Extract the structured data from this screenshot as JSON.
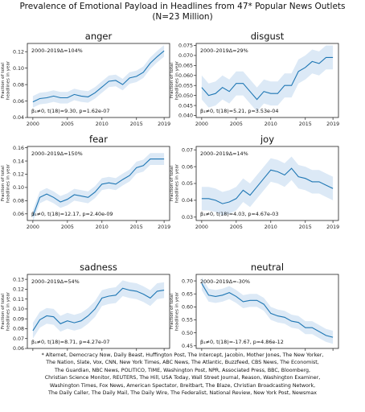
{
  "title_lines": [
    "Prevalence of Emotional Payload in Headlines from 47* Popular News Outlets",
    "(N=23 Million)"
  ],
  "colors": {
    "line": "#1f77b4",
    "band": "#dce9f6"
  },
  "chart_data": [
    {
      "type": "line",
      "title": "anger",
      "ylabel_lines": [
        "Fraction of total",
        "headlines in year"
      ],
      "x": [
        2000,
        2001,
        2002,
        2003,
        2004,
        2005,
        2006,
        2007,
        2008,
        2009,
        2010,
        2011,
        2012,
        2013,
        2014,
        2015,
        2016,
        2017,
        2018,
        2019
      ],
      "y": [
        0.059,
        0.063,
        0.064,
        0.066,
        0.064,
        0.064,
        0.068,
        0.066,
        0.065,
        0.07,
        0.077,
        0.084,
        0.085,
        0.08,
        0.088,
        0.09,
        0.095,
        0.106,
        0.114,
        0.121
      ],
      "band_width": 0.007,
      "xlim": [
        1999.2,
        2019.8
      ],
      "ylim": [
        0.04,
        0.13
      ],
      "xticks": [
        2000,
        2005,
        2010,
        2015,
        2019
      ],
      "yticks": [
        0.04,
        0.06,
        0.08,
        0.1,
        0.12
      ],
      "ytick_labels": [
        "0.04",
        "0.06",
        "0.08",
        "0.10",
        "0.12"
      ],
      "annotation_top": "2000–2019Δ=104%",
      "annotation_bottom": "β₁≠0, t(18)=9.30, p=1.62e-07"
    },
    {
      "type": "line",
      "title": "disgust",
      "ylabel_lines": [
        "Fraction of total",
        "headlines in year"
      ],
      "x": [
        2000,
        2001,
        2002,
        2003,
        2004,
        2005,
        2006,
        2007,
        2008,
        2009,
        2010,
        2011,
        2012,
        2013,
        2014,
        2015,
        2016,
        2017,
        2018,
        2019
      ],
      "y": [
        0.054,
        0.05,
        0.051,
        0.054,
        0.052,
        0.056,
        0.056,
        0.052,
        0.048,
        0.052,
        0.051,
        0.051,
        0.055,
        0.055,
        0.062,
        0.064,
        0.067,
        0.066,
        0.069,
        0.069
      ],
      "band_width": 0.006,
      "xlim": [
        1999.2,
        2019.8
      ],
      "ylim": [
        0.039,
        0.076
      ],
      "xticks": [
        2000,
        2005,
        2010,
        2015,
        2019
      ],
      "yticks": [
        0.04,
        0.045,
        0.05,
        0.055,
        0.06,
        0.065,
        0.07,
        0.075
      ],
      "ytick_labels": [
        "0.040",
        "0.045",
        "0.050",
        "0.055",
        "0.060",
        "0.065",
        "0.070",
        "0.075"
      ],
      "annotation_top": "2000–2019Δ=29%",
      "annotation_bottom": "β₁≠0, t(18)=5.21, p=3.53e-04"
    },
    {
      "type": "line",
      "title": "fear",
      "ylabel_lines": [
        "Fraction of total",
        "headlines in year"
      ],
      "x": [
        2000,
        2001,
        2002,
        2003,
        2004,
        2005,
        2006,
        2007,
        2008,
        2009,
        2010,
        2011,
        2012,
        2013,
        2014,
        2015,
        2016,
        2017,
        2018,
        2019
      ],
      "y": [
        0.057,
        0.085,
        0.09,
        0.085,
        0.078,
        0.082,
        0.089,
        0.087,
        0.085,
        0.093,
        0.105,
        0.107,
        0.105,
        0.112,
        0.118,
        0.13,
        0.133,
        0.143,
        0.143,
        0.143
      ],
      "band_width": 0.009,
      "xlim": [
        1999.2,
        2019.8
      ],
      "ylim": [
        0.05,
        0.162
      ],
      "xticks": [
        2000,
        2005,
        2010,
        2015,
        2019
      ],
      "yticks": [
        0.06,
        0.08,
        0.1,
        0.12,
        0.14,
        0.16
      ],
      "ytick_labels": [
        "0.06",
        "0.08",
        "0.10",
        "0.12",
        "0.14",
        "0.16"
      ],
      "annotation_top": "2000–2019Δ=150%",
      "annotation_bottom": "β₁≠0, t(18)=12.17, p=2.40e-09"
    },
    {
      "type": "line",
      "title": "joy",
      "ylabel_lines": [
        "Fraction of total",
        "headlines in year"
      ],
      "x": [
        2000,
        2001,
        2002,
        2003,
        2004,
        2005,
        2006,
        2007,
        2008,
        2009,
        2010,
        2011,
        2012,
        2013,
        2014,
        2015,
        2016,
        2017,
        2018,
        2019
      ],
      "y": [
        0.041,
        0.041,
        0.04,
        0.038,
        0.039,
        0.041,
        0.046,
        0.043,
        0.048,
        0.053,
        0.058,
        0.057,
        0.055,
        0.059,
        0.054,
        0.053,
        0.051,
        0.051,
        0.049,
        0.047
      ],
      "band_width": 0.007,
      "xlim": [
        1999.2,
        2019.8
      ],
      "ylim": [
        0.028,
        0.072
      ],
      "xticks": [
        2000,
        2005,
        2010,
        2015,
        2019
      ],
      "yticks": [
        0.03,
        0.04,
        0.05,
        0.06,
        0.07
      ],
      "ytick_labels": [
        "0.03",
        "0.04",
        "0.05",
        "0.06",
        "0.07"
      ],
      "annotation_top": "2000–2019Δ=14%",
      "annotation_bottom": "β₁≠0, t(18)=4.03, p=4.67e-03"
    },
    {
      "type": "line",
      "title": "sadness",
      "ylabel_lines": [
        "Fraction of total",
        "headlines in year"
      ],
      "x": [
        2000,
        2001,
        2002,
        2003,
        2004,
        2005,
        2006,
        2007,
        2008,
        2009,
        2010,
        2011,
        2012,
        2013,
        2014,
        2015,
        2016,
        2017,
        2018,
        2019
      ],
      "y": [
        0.078,
        0.089,
        0.093,
        0.092,
        0.085,
        0.088,
        0.086,
        0.088,
        0.093,
        0.1,
        0.111,
        0.113,
        0.114,
        0.121,
        0.119,
        0.118,
        0.115,
        0.111,
        0.118,
        0.119
      ],
      "band_width": 0.008,
      "xlim": [
        1999.2,
        2019.8
      ],
      "ylim": [
        0.06,
        0.135
      ],
      "xticks": [
        2000,
        2005,
        2010,
        2015,
        2019
      ],
      "yticks": [
        0.06,
        0.07,
        0.08,
        0.09,
        0.1,
        0.11,
        0.12,
        0.13
      ],
      "ytick_labels": [
        "0.06",
        "0.07",
        "0.08",
        "0.09",
        "0.10",
        "0.11",
        "0.12",
        "0.13"
      ],
      "annotation_top": "2000–2019Δ=54%",
      "annotation_bottom": "β₁≠0, t(18)=8.71, p=4.27e-07"
    },
    {
      "type": "line",
      "title": "neutral",
      "ylabel_lines": [
        "Fraction of total",
        "headlines in year"
      ],
      "x": [
        2000,
        2001,
        2002,
        2003,
        2004,
        2005,
        2006,
        2007,
        2008,
        2009,
        2010,
        2011,
        2012,
        2013,
        2014,
        2015,
        2016,
        2017,
        2018,
        2019
      ],
      "y": [
        0.69,
        0.645,
        0.64,
        0.645,
        0.655,
        0.64,
        0.62,
        0.625,
        0.625,
        0.61,
        0.575,
        0.565,
        0.56,
        0.545,
        0.54,
        0.52,
        0.52,
        0.505,
        0.49,
        0.483
      ],
      "band_width": 0.025,
      "xlim": [
        1999.2,
        2019.8
      ],
      "ylim": [
        0.44,
        0.725
      ],
      "xticks": [
        2000,
        2005,
        2010,
        2015,
        2019
      ],
      "yticks": [
        0.45,
        0.5,
        0.55,
        0.6,
        0.65,
        0.7
      ],
      "ytick_labels": [
        "0.45",
        "0.50",
        "0.55",
        "0.60",
        "0.65",
        "0.70"
      ],
      "annotation_top": "2000–2019Δ=-30%",
      "annotation_bottom": "β₁≠0, t(18)=-17.67, p=4.86e-12"
    }
  ],
  "footnote_lines": [
    "* Alternet, Democracy Now, Daily Beast, Huffington Post, The Intercept, Jacobin, Mother Jones, The New Yorker,",
    "The Nation, Slate, Vox, CNN, New York Times, ABC News, The Atlantic, Buzzfeed, CBS News, The Economist,",
    "The Guardian, NBC News, POLITICO, TIME, Washington Post, NPR, Associated Press, BBC, Bloomberg,",
    "Christian Science Monitor, REUTERS, The Hill, USA Today, Wall Street Journal, Reason, Washington Examiner,",
    "Washington Times, Fox News, American Spectator, Breitbart, The Blaze, Christian Broadcasting Network,",
    "The Daily Caller, The Daily Mail, The Daily Wire, The Federalist, National Review, New York Post, Newsmax"
  ]
}
